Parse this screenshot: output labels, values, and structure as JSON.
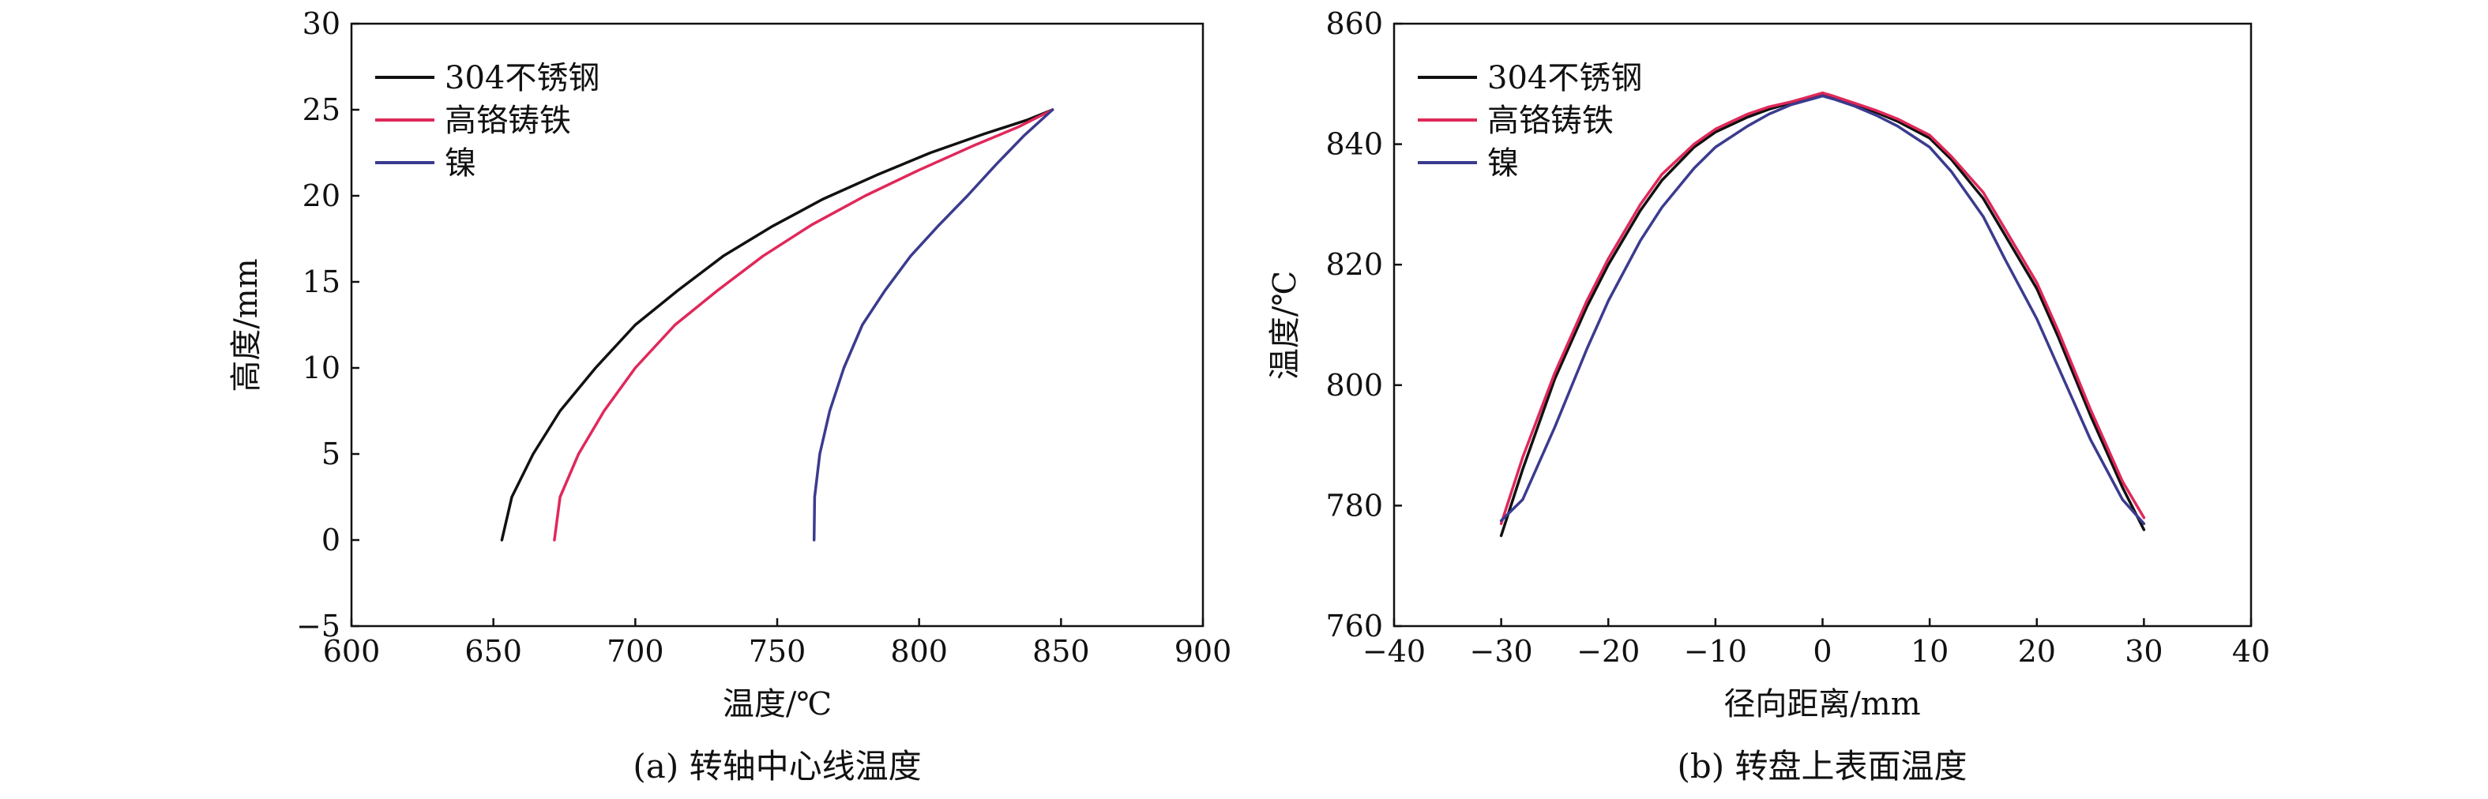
{
  "chart_data": [
    {
      "type": "line",
      "caption": "(a) 转轴中心线温度",
      "xlabel": "温度/℃",
      "ylabel": "高度/mm",
      "xlim": [
        600,
        900
      ],
      "ylim": [
        -5,
        30
      ],
      "xticks": [
        600,
        650,
        700,
        750,
        800,
        850,
        900
      ],
      "yticks": [
        -5,
        0,
        5,
        10,
        15,
        20,
        25,
        30
      ],
      "legend_position": "top-left",
      "grid": false,
      "series": [
        {
          "name": "304不锈钢",
          "color": "#111111",
          "x": [
            653.0,
            656.5,
            664.0,
            673.5,
            686.0,
            700.0,
            715.0,
            731.0,
            748.0,
            766.0,
            785.0,
            804.0,
            823.0,
            838.0,
            847.0
          ],
          "y": [
            0,
            2.5,
            5,
            7.5,
            10,
            12.5,
            14.5,
            16.5,
            18.2,
            19.8,
            21.2,
            22.5,
            23.6,
            24.4,
            25
          ]
        },
        {
          "name": "高铬铸铁",
          "color": "#e0285a",
          "x": [
            671.5,
            673.5,
            680.0,
            689.0,
            700.0,
            714.0,
            729.0,
            745.0,
            762.0,
            781.0,
            800.0,
            819.0,
            835.0,
            847.0
          ],
          "y": [
            0,
            2.5,
            5,
            7.5,
            10,
            12.5,
            14.5,
            16.5,
            18.3,
            20.0,
            21.5,
            22.9,
            24.0,
            25
          ]
        },
        {
          "name": "镍",
          "color": "#3b3b8f",
          "x": [
            763.0,
            763.2,
            765.0,
            768.5,
            773.5,
            780.0,
            788.0,
            797.0,
            807.0,
            817.0,
            827.0,
            837.0,
            847.0
          ],
          "y": [
            0,
            2.5,
            5,
            7.5,
            10,
            12.5,
            14.5,
            16.5,
            18.3,
            20.0,
            21.8,
            23.5,
            25
          ]
        }
      ]
    },
    {
      "type": "line",
      "caption": "(b) 转盘上表面温度",
      "xlabel": "径向距离/mm",
      "ylabel": "温度/℃",
      "xlim": [
        -40,
        40
      ],
      "ylim": [
        760,
        860
      ],
      "xticks": [
        -40,
        -30,
        -20,
        -10,
        0,
        10,
        20,
        30,
        40
      ],
      "yticks": [
        760,
        780,
        800,
        820,
        840,
        860
      ],
      "legend_position": "top-left",
      "grid": false,
      "series": [
        {
          "name": "304不锈钢",
          "color": "#111111",
          "x": [
            -30,
            -28,
            -25,
            -22,
            -20,
            -17,
            -15,
            -12,
            -10,
            -7,
            -5,
            -3,
            -1,
            0,
            1,
            3,
            5,
            7,
            10,
            12,
            15,
            17,
            20,
            22,
            25,
            28,
            30
          ],
          "y": [
            775,
            786,
            801,
            813,
            820,
            829,
            834,
            839.5,
            842,
            844.5,
            845.8,
            846.8,
            847.8,
            848.5,
            847.8,
            846.5,
            845.3,
            843.8,
            841,
            837.5,
            831,
            825,
            816,
            808,
            795,
            783,
            776
          ]
        },
        {
          "name": "高铬铸铁",
          "color": "#e0285a",
          "x": [
            -30,
            -28,
            -25,
            -22,
            -20,
            -17,
            -15,
            -12,
            -10,
            -7,
            -5,
            -3,
            -1,
            0,
            1,
            3,
            5,
            7,
            10,
            12,
            15,
            17,
            20,
            22,
            25,
            28,
            30
          ],
          "y": [
            777,
            788,
            802,
            814,
            821,
            830,
            835,
            840,
            842.5,
            845,
            846.2,
            847,
            848,
            848.5,
            848,
            846.8,
            845.6,
            844.2,
            841.5,
            838,
            832,
            826,
            817,
            809,
            796,
            784,
            778
          ]
        },
        {
          "name": "镍",
          "color": "#3b3b8f",
          "x": [
            -30,
            -28,
            -25,
            -22,
            -20,
            -17,
            -15,
            -12,
            -10,
            -7,
            -5,
            -3,
            -1,
            0,
            1,
            3,
            5,
            7,
            10,
            12,
            15,
            17,
            20,
            22,
            25,
            28,
            30
          ],
          "y": [
            777.5,
            781,
            793,
            806,
            814,
            824,
            829.5,
            836,
            839.5,
            843,
            845,
            846.5,
            847.5,
            848,
            847.5,
            846.3,
            844.8,
            843,
            839.5,
            835.5,
            828,
            821,
            811,
            803,
            791,
            781,
            777
          ]
        }
      ]
    }
  ]
}
